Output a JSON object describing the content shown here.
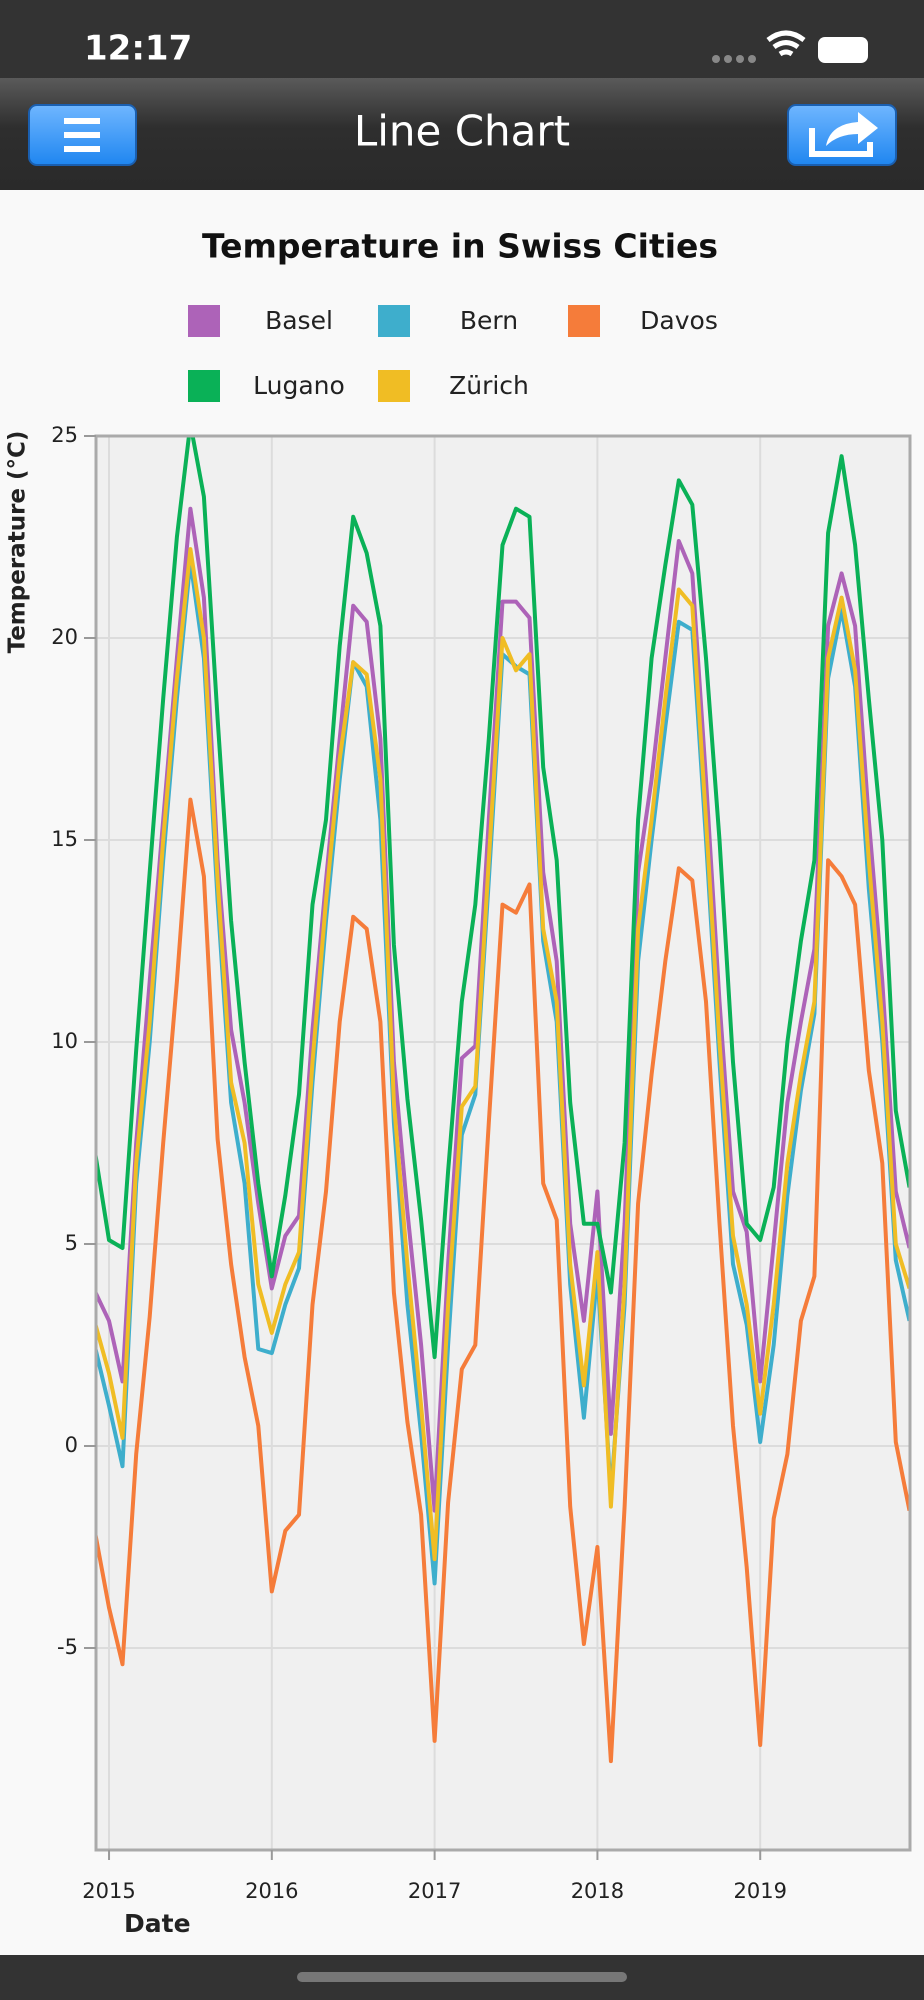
{
  "status_bar": {
    "time": "12:17"
  },
  "nav_bar": {
    "title": "Line Chart"
  },
  "chart_data": {
    "type": "line",
    "title": "Temperature in Swiss Cities",
    "x_label": "Date",
    "y_label": "Temperature (°C)",
    "x": [
      2014.917,
      2015,
      2015.083,
      2015.167,
      2015.25,
      2015.333,
      2015.417,
      2015.5,
      2015.583,
      2015.667,
      2015.75,
      2015.833,
      2015.917,
      2016,
      2016.083,
      2016.167,
      2016.25,
      2016.333,
      2016.417,
      2016.5,
      2016.583,
      2016.667,
      2016.75,
      2016.833,
      2016.917,
      2017,
      2017.083,
      2017.167,
      2017.25,
      2017.333,
      2017.417,
      2017.5,
      2017.583,
      2017.667,
      2017.75,
      2017.833,
      2017.917,
      2018,
      2018.083,
      2018.167,
      2018.25,
      2018.333,
      2018.417,
      2018.5,
      2018.583,
      2018.667,
      2018.75,
      2018.833,
      2018.917,
      2019,
      2019.083,
      2019.167,
      2019.25,
      2019.333,
      2019.417,
      2019.5,
      2019.583,
      2019.667,
      2019.75,
      2019.833,
      2019.917
    ],
    "series": [
      {
        "name": "Basel",
        "color": "#ad63b8",
        "values": [
          3.8,
          3.1,
          1.6,
          7.5,
          11.5,
          15.5,
          19.5,
          23.2,
          21,
          14.5,
          10.3,
          8.5,
          6.0,
          3.9,
          5.2,
          5.7,
          10.3,
          14,
          17.5,
          20.8,
          20.4,
          17.5,
          9.5,
          5.8,
          2.5,
          -1.6,
          4.5,
          9.6,
          9.9,
          15.5,
          20.9,
          20.9,
          20.5,
          14.2,
          12,
          5.5,
          3.1,
          6.3,
          0.3,
          5.5,
          14.2,
          16.5,
          19.5,
          22.4,
          21.6,
          16.5,
          11,
          6.3,
          5.3,
          1.6,
          5.0,
          8.5,
          10.5,
          12.3,
          20.3,
          21.6,
          20.3,
          15.5,
          11.5,
          6.3,
          4.9
        ]
      },
      {
        "name": "Bern",
        "color": "#3eaecc",
        "values": [
          2.4,
          1.0,
          -0.5,
          6.5,
          10,
          14.5,
          18.5,
          21.9,
          19.5,
          13.5,
          8.5,
          6.5,
          2.4,
          2.3,
          3.5,
          4.4,
          9,
          13,
          16.5,
          19.4,
          18.8,
          15.5,
          8,
          3.5,
          0.3,
          -3.4,
          2.5,
          7.7,
          8.7,
          14,
          19.6,
          19.3,
          19.1,
          12.5,
          10.5,
          4,
          0.7,
          4.3,
          -1.2,
          3.5,
          12,
          15,
          17.8,
          20.4,
          20.2,
          15,
          9.5,
          4.5,
          3.0,
          0.1,
          2.5,
          6.2,
          8.8,
          10.7,
          19,
          20.7,
          18.8,
          13.8,
          10,
          4.6,
          3.1
        ]
      },
      {
        "name": "Davos",
        "color": "#f57c3a",
        "values": [
          -2.2,
          -4,
          -5.4,
          -0.2,
          3.2,
          7.5,
          11.5,
          16.0,
          14.1,
          7.6,
          4.5,
          2.2,
          0.5,
          -3.6,
          -2.1,
          -1.7,
          3.5,
          6.3,
          10.5,
          13.1,
          12.8,
          10.5,
          3.8,
          0.6,
          -1.7,
          -7.3,
          -1.4,
          1.9,
          2.5,
          8,
          13.4,
          13.2,
          13.9,
          6.5,
          5.6,
          -1.5,
          -4.9,
          -2.5,
          -7.8,
          -1.5,
          6,
          9.2,
          12,
          14.3,
          14.0,
          11,
          5.5,
          0.5,
          -3,
          -7.4,
          -1.8,
          -0.2,
          3.1,
          4.2,
          14.5,
          14.1,
          13.4,
          9.3,
          7.0,
          0.1,
          -1.6
        ]
      },
      {
        "name": "Lugano",
        "color": "#0ab157",
        "values": [
          7.2,
          5.1,
          4.9,
          9.8,
          14.2,
          18.5,
          22.5,
          25.3,
          23.5,
          18,
          13,
          9.5,
          6.5,
          4.2,
          6.2,
          8.7,
          13.4,
          15.5,
          19.8,
          23,
          22.1,
          20.3,
          12.4,
          8.6,
          5.6,
          2.2,
          6.8,
          11,
          13.4,
          17.5,
          22.3,
          23.2,
          23,
          16.8,
          14.5,
          8.5,
          5.5,
          5.5,
          3.8,
          7.5,
          15.5,
          19.5,
          21.8,
          23.9,
          23.3,
          19.5,
          15,
          9.5,
          5.5,
          5.1,
          6.4,
          10,
          12.5,
          14.5,
          22.6,
          24.5,
          22.3,
          18.5,
          15,
          8.3,
          6.4
        ]
      },
      {
        "name": "Zürich",
        "color": "#f0bd24",
        "values": [
          3.0,
          1.8,
          0.2,
          7,
          10.5,
          15,
          19,
          22.2,
          20,
          14,
          9,
          7.5,
          4.0,
          2.8,
          4.0,
          4.8,
          9.5,
          13.5,
          17,
          19.4,
          19.1,
          16.5,
          8.5,
          4.5,
          1.0,
          -2.8,
          3.5,
          8.4,
          8.9,
          14.5,
          20,
          19.2,
          19.6,
          12.8,
          11,
          4.5,
          1.5,
          4.8,
          -1.5,
          4,
          12.8,
          15.5,
          18.5,
          21.2,
          20.8,
          15.5,
          10,
          5.2,
          3.5,
          0.8,
          3.5,
          7,
          9.2,
          11,
          19.5,
          21.0,
          19.2,
          14.5,
          10.5,
          5.0,
          3.9
        ]
      }
    ],
    "xlim": [
      2014.92,
      2019.92
    ],
    "xticks": [
      2015,
      2016,
      2017,
      2018,
      2019
    ],
    "ylim": [
      -10,
      25
    ],
    "yticks": [
      -5,
      0,
      5,
      10,
      15,
      20,
      25
    ],
    "grid": true
  }
}
